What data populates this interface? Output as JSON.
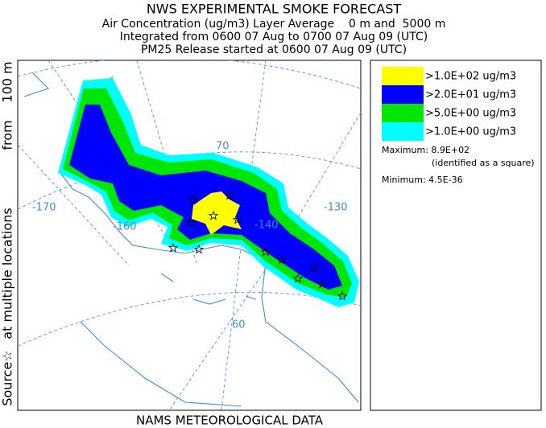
{
  "header": {
    "title": "NWS EXPERIMENTAL SMOKE FORECAST",
    "lines": [
      "Air Concentration (ug/m3) Layer Average    0 m and  5000 m",
      "Integrated from 0600 07 Aug to 0700 07 Aug 09 (UTC)",
      "PM25 Release started at 0600 07 Aug 09 (UTC)"
    ]
  },
  "side_label": [
    "Source☆",
    "at multiple locations",
    "from",
    "100 m"
  ],
  "footer": "NAMS METEOROLOGICAL DATA",
  "legend": [
    {
      "label": ">1.0E+02 ug/m3",
      "color": "#ffff00"
    },
    {
      "label": ">2.0E+01 ug/m3",
      "color": "#0000ff"
    },
    {
      "label": ">5.0E+00 ug/m3",
      "color": "#00e600"
    },
    {
      "label": ">1.0E+00 ug/m3",
      "color": "#00ffff"
    }
  ],
  "stats": {
    "maximum": "Maximum: 8.9E+02",
    "note": "(identified as a square)",
    "minimum": "Minimum: 4.5E-36"
  },
  "map_labels": {
    "lon": [
      "-170",
      "-160",
      "-140",
      "-130"
    ],
    "lat": [
      "70",
      "60"
    ]
  }
}
